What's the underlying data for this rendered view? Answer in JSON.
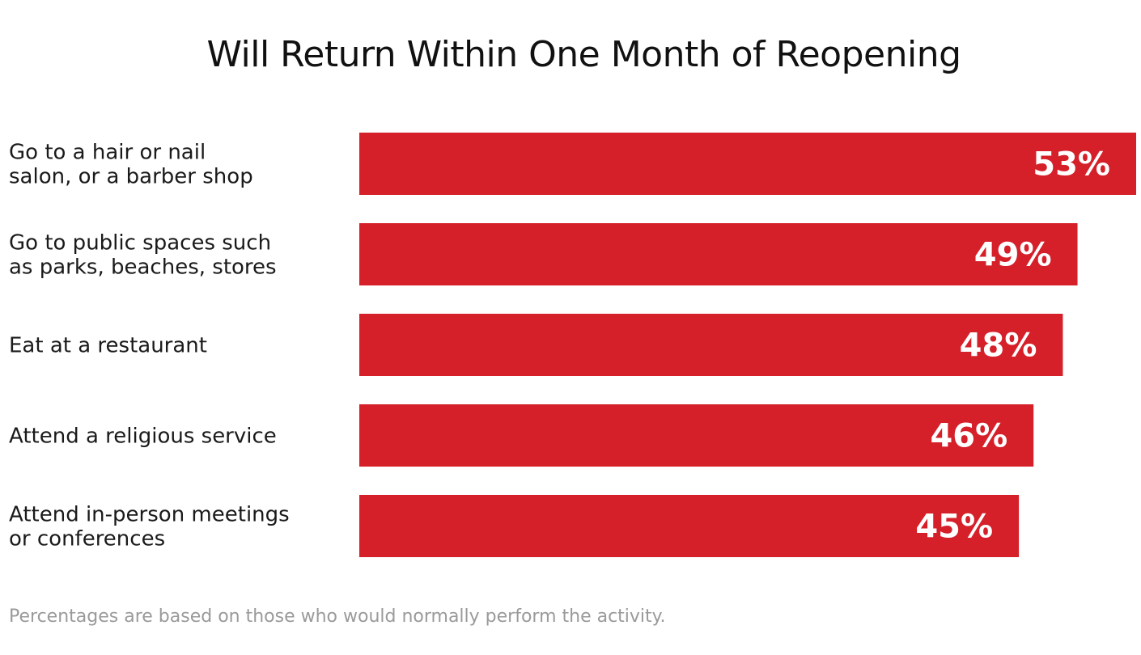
{
  "chart_data": {
    "type": "bar",
    "orientation": "horizontal",
    "title": "Will Return Within One Month of Reopening",
    "categories": [
      [
        "Go to a hair or nail",
        "salon, or a barber shop"
      ],
      [
        "Go to public spaces such",
        "as parks, beaches, stores"
      ],
      [
        "Eat at a restaurant"
      ],
      [
        "Attend a religious service"
      ],
      [
        "Attend in-person meetings",
        "or conferences"
      ]
    ],
    "values": [
      53,
      49,
      48,
      46,
      45
    ],
    "value_labels": [
      "53%",
      "49%",
      "48%",
      "46%",
      "45%"
    ],
    "xlim": [
      0,
      53
    ],
    "grid": false,
    "bar_color": "#d51f29",
    "footnote": "Percentages are based on those who would normally perform the activity."
  }
}
